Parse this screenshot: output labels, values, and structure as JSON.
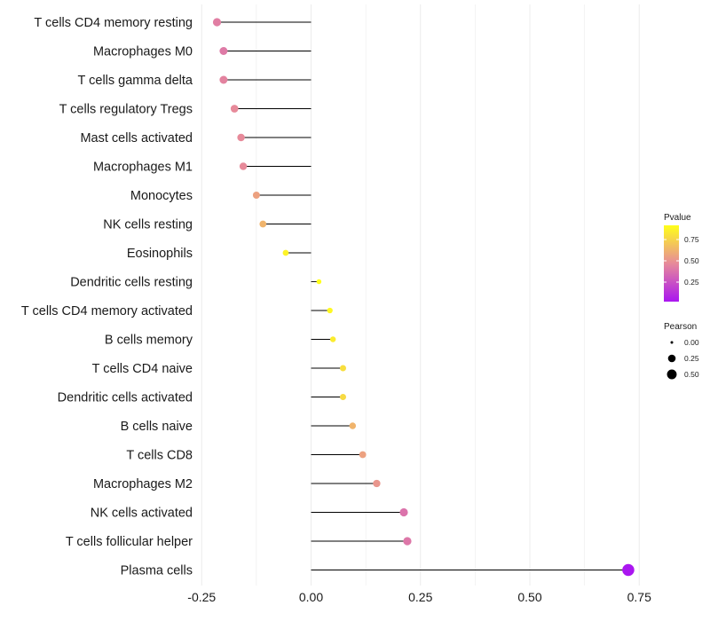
{
  "chart_data": {
    "type": "lollipop",
    "title": "",
    "xlabel": "",
    "ylabel": "",
    "xlim": [
      -0.28,
      0.78
    ],
    "x_ticks": [
      -0.25,
      0.0,
      0.25,
      0.5,
      0.75
    ],
    "x_tick_labels": [
      "-0.25",
      "0.00",
      "0.25",
      "0.50",
      "0.75"
    ],
    "grid": true,
    "categories": [
      "T cells CD4 memory resting",
      "Macrophages M0",
      "T cells gamma delta",
      "T cells regulatory  Tregs ",
      "Mast cells activated",
      "Macrophages M1",
      "Monocytes",
      "NK cells resting",
      "Eosinophils",
      "Dendritic cells resting",
      "T cells CD4 memory activated",
      "B cells memory",
      "T cells CD4 naive",
      "Dendritic cells activated",
      "B cells naive",
      "T cells CD8",
      "Macrophages M2",
      "NK cells activated",
      "T cells follicular helper",
      "Plasma cells"
    ],
    "values": [
      -0.215,
      -0.2,
      -0.2,
      -0.175,
      -0.16,
      -0.155,
      -0.125,
      -0.11,
      -0.058,
      0.018,
      0.043,
      0.05,
      0.073,
      0.073,
      0.095,
      0.118,
      0.15,
      0.212,
      0.22,
      0.725
    ],
    "pvalue": [
      0.45,
      0.43,
      0.47,
      0.5,
      0.5,
      0.5,
      0.6,
      0.68,
      0.95,
      1.0,
      0.97,
      0.92,
      0.86,
      0.84,
      0.68,
      0.6,
      0.55,
      0.4,
      0.42,
      0.0
    ],
    "pearson_abs": [
      0.215,
      0.2,
      0.2,
      0.175,
      0.16,
      0.155,
      0.125,
      0.11,
      0.058,
      0.018,
      0.043,
      0.05,
      0.073,
      0.073,
      0.095,
      0.118,
      0.15,
      0.212,
      0.22,
      0.725
    ],
    "legend": {
      "color_title": "Pvalue",
      "color_ticks": [
        "0.75",
        "0.50",
        "0.25"
      ],
      "color_low": "#aa16f0",
      "color_mid": "#e78a9a",
      "color_high": "#ffff1a",
      "size_title": "Pearson",
      "size_ticks": [
        "0.00",
        "0.25",
        "0.50"
      ],
      "placement": "right"
    },
    "stem_color": "#000000",
    "grid_color": "#ececec"
  }
}
